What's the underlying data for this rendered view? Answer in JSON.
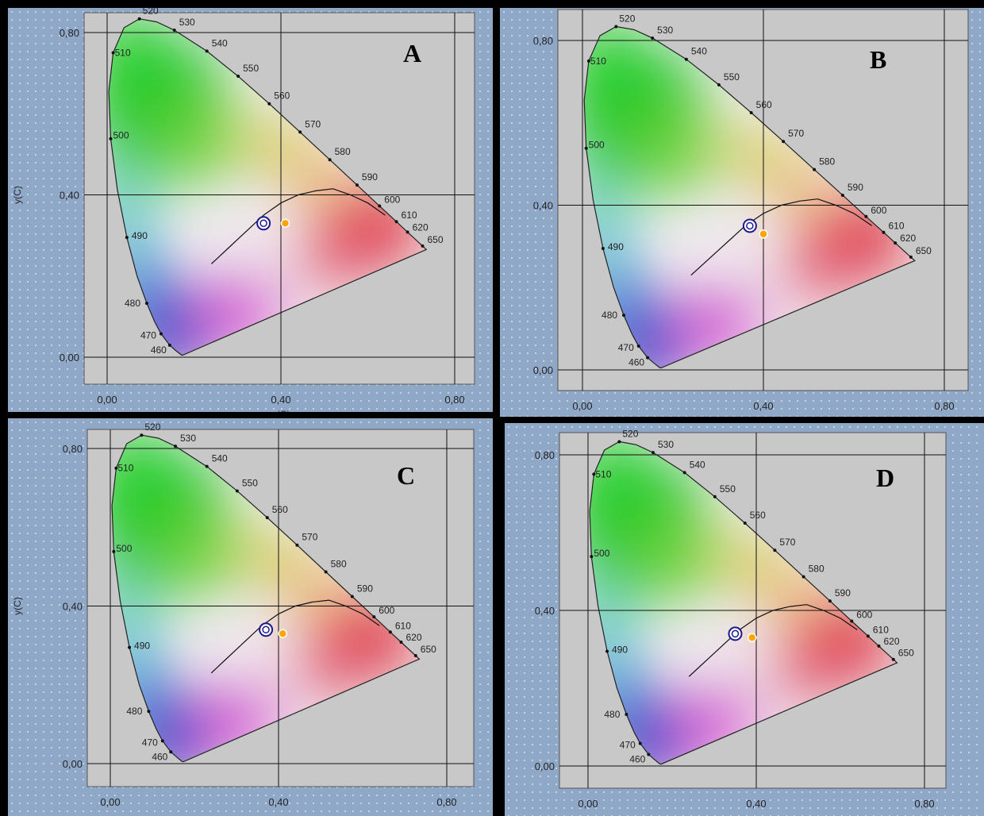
{
  "chart_data": [
    {
      "type": "scatter",
      "title": "",
      "panel_label": "A",
      "xlabel": "x(C)",
      "ylabel": "y(C)",
      "xlim": [
        -0.05,
        0.85
      ],
      "ylim": [
        -0.06,
        0.86
      ],
      "x_ticks": [
        "0,00",
        "0,40",
        "0,80"
      ],
      "y_ticks": [
        "0,00",
        "0,40",
        "0,80"
      ],
      "grid": true,
      "spectral_locus_nm": [
        "460",
        "470",
        "480",
        "490",
        "500",
        "510",
        "520",
        "530",
        "540",
        "550",
        "560",
        "570",
        "580",
        "590",
        "600",
        "610",
        "620",
        "650"
      ],
      "series": [
        {
          "marker": "blue-ring",
          "x": [
            0.36
          ],
          "y": [
            0.33
          ]
        },
        {
          "marker": "orange-dot",
          "x": [
            0.41
          ],
          "y": [
            0.33
          ]
        }
      ]
    },
    {
      "type": "scatter",
      "title": "",
      "panel_label": "B",
      "xlabel": "",
      "ylabel": "",
      "xlim": [
        -0.05,
        0.85
      ],
      "ylim": [
        -0.06,
        0.86
      ],
      "x_ticks": [
        "0,00",
        "0,40",
        "0,80"
      ],
      "y_ticks": [
        "0,00",
        "0,40",
        "0,80"
      ],
      "grid": true,
      "spectral_locus_nm": [
        "460",
        "470",
        "480",
        "490",
        "500",
        "510",
        "520",
        "530",
        "540",
        "550",
        "560",
        "570",
        "580",
        "590",
        "600",
        "610",
        "620",
        "650"
      ],
      "series": [
        {
          "marker": "blue-ring",
          "x": [
            0.37
          ],
          "y": [
            0.35
          ]
        },
        {
          "marker": "orange-dot",
          "x": [
            0.4
          ],
          "y": [
            0.33
          ]
        }
      ]
    },
    {
      "type": "scatter",
      "title": "",
      "panel_label": "C",
      "xlabel": "",
      "ylabel": "y(C)",
      "xlim": [
        -0.05,
        0.85
      ],
      "ylim": [
        -0.06,
        0.86
      ],
      "x_ticks": [
        "0,00",
        "0,40",
        "0,80"
      ],
      "y_ticks": [
        "0,00",
        "0,40",
        "0,80"
      ],
      "grid": true,
      "spectral_locus_nm": [
        "460",
        "470",
        "480",
        "490",
        "500",
        "510",
        "520",
        "530",
        "540",
        "550",
        "560",
        "570",
        "580",
        "590",
        "600",
        "610",
        "620",
        "650"
      ],
      "series": [
        {
          "marker": "blue-ring",
          "x": [
            0.37
          ],
          "y": [
            0.34
          ]
        },
        {
          "marker": "orange-dot",
          "x": [
            0.41
          ],
          "y": [
            0.33
          ]
        }
      ]
    },
    {
      "type": "scatter",
      "title": "",
      "panel_label": "D",
      "xlabel": "",
      "ylabel": "",
      "xlim": [
        -0.05,
        0.85
      ],
      "ylim": [
        -0.06,
        0.86
      ],
      "x_ticks": [
        "0,00",
        "0,40",
        "0,80"
      ],
      "y_ticks": [
        "0,00",
        "0,40",
        "0,80"
      ],
      "grid": true,
      "spectral_locus_nm": [
        "460",
        "470",
        "480",
        "490",
        "500",
        "510",
        "520",
        "530",
        "540",
        "550",
        "560",
        "570",
        "580",
        "590",
        "600",
        "610",
        "620",
        "650"
      ],
      "series": [
        {
          "marker": "blue-ring",
          "x": [
            0.35
          ],
          "y": [
            0.34
          ]
        },
        {
          "marker": "orange-dot",
          "x": [
            0.39
          ],
          "y": [
            0.33
          ]
        }
      ]
    }
  ],
  "colors": {
    "plot_background": "#c8c8c8",
    "panel_background": "#8fa8c8",
    "ring_marker": "#1a1a8c",
    "dot_marker": "#ffa500",
    "divider": "#000000"
  }
}
